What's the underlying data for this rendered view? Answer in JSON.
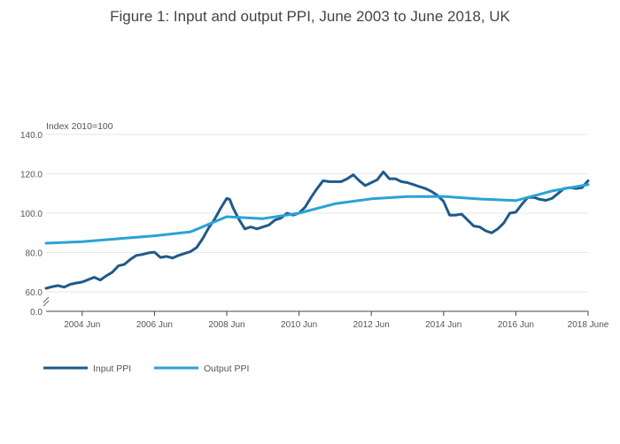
{
  "title": "Figure 1: Input and output PPI, June 2003 to June 2018, UK",
  "chart_data": {
    "type": "line",
    "title": "Figure 1: Input and output PPI, June 2003 to June 2018, UK",
    "ylabel": "Index 2010=100",
    "xlabel": "",
    "ylim": [
      0,
      140
    ],
    "y_axis_break": [
      0,
      60
    ],
    "y_ticks": [
      "0.0",
      "60.0",
      "80.0",
      "100.0",
      "120.0",
      "140.0"
    ],
    "x_ticks": [
      "2004 Jun",
      "2006 Jun",
      "2008 Jun",
      "2010 Jun",
      "2012 Jun",
      "2014 Jun",
      "2016 Jun",
      "2018 June"
    ],
    "x_range": [
      "2003 Jun",
      "2018 Jun"
    ],
    "grid": "horizontal",
    "legend_position": "bottom-left",
    "series": [
      {
        "name": "Input PPI",
        "color": "#1f5a8a",
        "x": [
          "2003 Jun",
          "2003 Aug",
          "2003 Oct",
          "2003 Dec",
          "2004 Feb",
          "2004 Apr",
          "2004 Jun",
          "2004 Aug",
          "2004 Oct",
          "2004 Dec",
          "2005 Feb",
          "2005 Apr",
          "2005 Jun",
          "2005 Aug",
          "2005 Oct",
          "2005 Dec",
          "2006 Feb",
          "2006 Apr",
          "2006 Jun",
          "2006 Aug",
          "2006 Oct",
          "2006 Dec",
          "2007 Feb",
          "2007 Apr",
          "2007 Jun",
          "2007 Aug",
          "2007 Oct",
          "2007 Dec",
          "2008 Feb",
          "2008 Apr",
          "2008 Jun",
          "2008 Jul",
          "2008 Aug",
          "2008 Oct",
          "2008 Dec",
          "2009 Feb",
          "2009 Apr",
          "2009 Jun",
          "2009 Aug",
          "2009 Oct",
          "2009 Dec",
          "2010 Feb",
          "2010 Apr",
          "2010 Jun",
          "2010 Aug",
          "2010 Oct",
          "2010 Dec",
          "2011 Feb",
          "2011 Apr",
          "2011 Jun",
          "2011 Aug",
          "2011 Oct",
          "2011 Dec",
          "2012 Feb",
          "2012 Apr",
          "2012 Jun",
          "2012 Aug",
          "2012 Oct",
          "2012 Dec",
          "2013 Feb",
          "2013 Apr",
          "2013 Jun",
          "2013 Aug",
          "2013 Oct",
          "2013 Dec",
          "2014 Feb",
          "2014 Apr",
          "2014 Jun",
          "2014 Aug",
          "2014 Oct",
          "2014 Dec",
          "2015 Feb",
          "2015 Apr",
          "2015 Jun",
          "2015 Aug",
          "2015 Oct",
          "2015 Dec",
          "2016 Feb",
          "2016 Apr",
          "2016 Jun",
          "2016 Aug",
          "2016 Oct",
          "2016 Dec",
          "2017 Feb",
          "2017 Apr",
          "2017 Jun",
          "2017 Aug",
          "2017 Oct",
          "2017 Dec",
          "2018 Feb",
          "2018 Apr",
          "2018 Jun"
        ],
        "values": [
          61.8,
          62.6,
          63.2,
          62.4,
          63.8,
          64.5,
          65.0,
          66.2,
          67.4,
          66.0,
          68.2,
          70.0,
          73.2,
          74.0,
          76.5,
          78.5,
          79.0,
          79.8,
          80.2,
          77.5,
          78.0,
          77.2,
          78.5,
          79.5,
          80.5,
          82.5,
          87.0,
          92.5,
          97.0,
          102.5,
          107.5,
          107.0,
          103.0,
          97.0,
          92.0,
          93.0,
          92.0,
          93.0,
          94.0,
          96.5,
          97.5,
          100.0,
          99.0,
          100.0,
          103.0,
          108.0,
          112.5,
          116.5,
          116.0,
          116.0,
          116.0,
          117.5,
          119.5,
          116.5,
          114.0,
          115.5,
          117.0,
          121.0,
          117.5,
          117.5,
          116.0,
          115.5,
          114.5,
          113.5,
          112.5,
          111.0,
          109.0,
          106.0,
          99.0,
          99.0,
          99.5,
          96.5,
          93.5,
          93.0,
          91.0,
          90.0,
          92.0,
          95.0,
          100.0,
          100.5,
          104.5,
          108.0,
          108.0,
          107.0,
          106.5,
          107.5,
          110.0,
          112.5,
          113.0,
          112.5,
          113.0,
          116.5
        ]
      },
      {
        "name": "Output PPI",
        "color": "#29a3d6",
        "x": [
          "2003 Jun",
          "2004 Jun",
          "2005 Jun",
          "2006 Jun",
          "2007 Jun",
          "2008 Jun",
          "2009 Jun",
          "2010 Jun",
          "2011 Jun",
          "2012 Jun",
          "2013 Jun",
          "2014 Jun",
          "2015 Jun",
          "2016 Jun",
          "2017 Jun",
          "2018 Jun"
        ],
        "values": [
          84.7,
          85.5,
          87.0,
          88.5,
          90.5,
          98.2,
          97.2,
          100.0,
          104.8,
          107.3,
          108.4,
          108.5,
          107.2,
          106.4,
          111.3,
          114.5
        ]
      }
    ]
  }
}
